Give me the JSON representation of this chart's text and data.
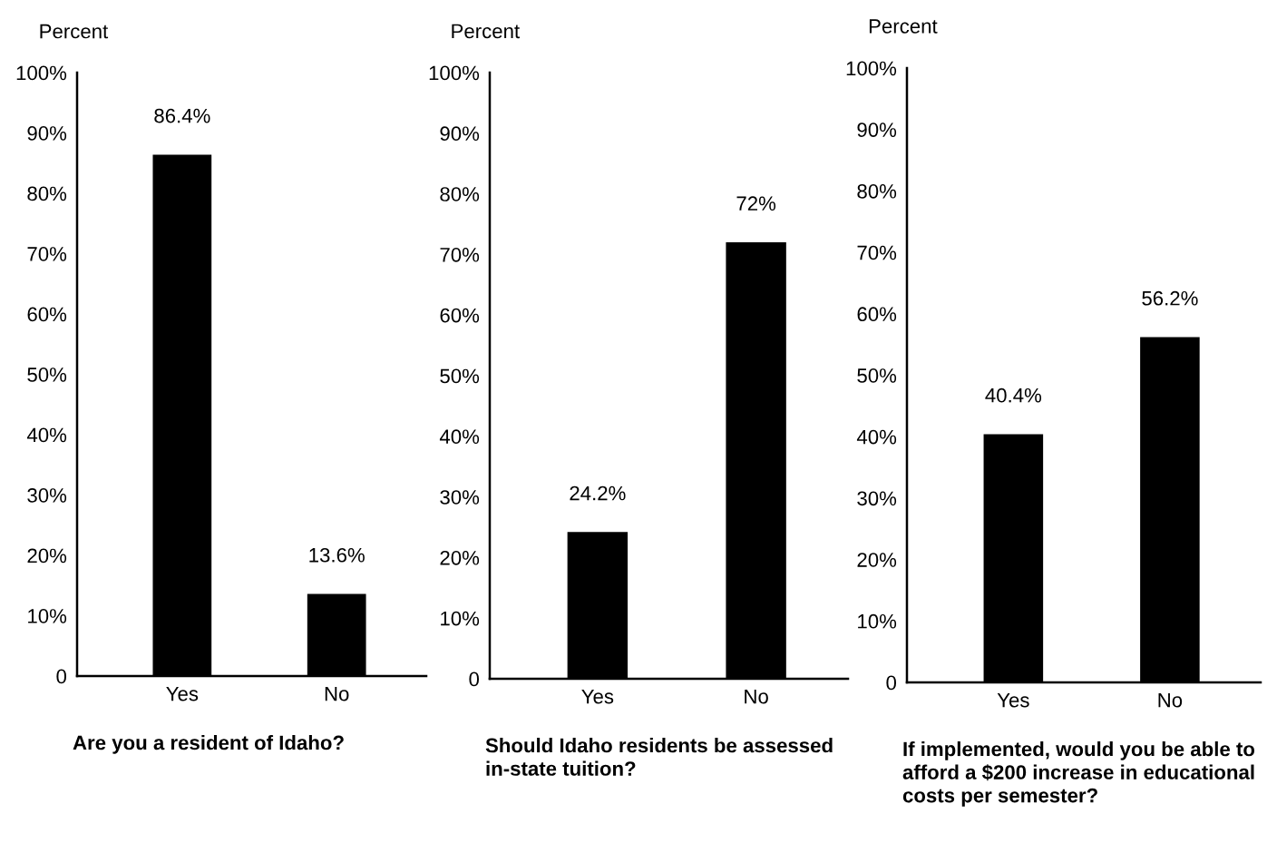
{
  "chart_data": [
    {
      "type": "bar",
      "title": "Are you a resident of Idaho?",
      "ylabel": "Percent",
      "categories": [
        "Yes",
        "No"
      ],
      "values": [
        86.4,
        13.6
      ],
      "value_labels": [
        "86.4%",
        "13.6%"
      ],
      "color": "#000000",
      "ylim": [
        0,
        100
      ],
      "yticks": [
        {
          "value": 0,
          "label": "0"
        },
        {
          "value": 10,
          "label": "10%"
        },
        {
          "value": 20,
          "label": "20%"
        },
        {
          "value": 30,
          "label": "30%"
        },
        {
          "value": 40,
          "label": "40%"
        },
        {
          "value": 50,
          "label": "50%"
        },
        {
          "value": 60,
          "label": "60%"
        },
        {
          "value": 70,
          "label": "70%"
        },
        {
          "value": 80,
          "label": "80%"
        },
        {
          "value": 90,
          "label": "90%"
        },
        {
          "value": 100,
          "label": "100%"
        }
      ]
    },
    {
      "type": "bar",
      "title": "Should Idaho residents be assessed in-state tuition?",
      "ylabel": "Percent",
      "categories": [
        "Yes",
        "No"
      ],
      "values": [
        24.2,
        72
      ],
      "value_labels": [
        "24.2%",
        "72%"
      ],
      "color": "#000000",
      "ylim": [
        0,
        100
      ],
      "yticks": [
        {
          "value": 0,
          "label": "0"
        },
        {
          "value": 10,
          "label": "10%"
        },
        {
          "value": 20,
          "label": "20%"
        },
        {
          "value": 30,
          "label": "30%"
        },
        {
          "value": 40,
          "label": "40%"
        },
        {
          "value": 50,
          "label": "50%"
        },
        {
          "value": 60,
          "label": "60%"
        },
        {
          "value": 70,
          "label": "70%"
        },
        {
          "value": 80,
          "label": "80%"
        },
        {
          "value": 90,
          "label": "90%"
        },
        {
          "value": 100,
          "label": "100%"
        }
      ]
    },
    {
      "type": "bar",
      "title": "If implemented, would you be able to afford a $200 increase in educational costs per semester?",
      "ylabel": "Percent",
      "categories": [
        "Yes",
        "No"
      ],
      "values": [
        40.4,
        56.2
      ],
      "value_labels": [
        "40.4%",
        "56.2%"
      ],
      "color": "#000000",
      "ylim": [
        0,
        100
      ],
      "yticks": [
        {
          "value": 0,
          "label": "0"
        },
        {
          "value": 10,
          "label": "10%"
        },
        {
          "value": 20,
          "label": "20%"
        },
        {
          "value": 30,
          "label": "30%"
        },
        {
          "value": 40,
          "label": "40%"
        },
        {
          "value": 50,
          "label": "50%"
        },
        {
          "value": 60,
          "label": "60%"
        },
        {
          "value": 70,
          "label": "70%"
        },
        {
          "value": 80,
          "label": "80%"
        },
        {
          "value": 90,
          "label": "90%"
        },
        {
          "value": 100,
          "label": "100%"
        }
      ]
    }
  ]
}
